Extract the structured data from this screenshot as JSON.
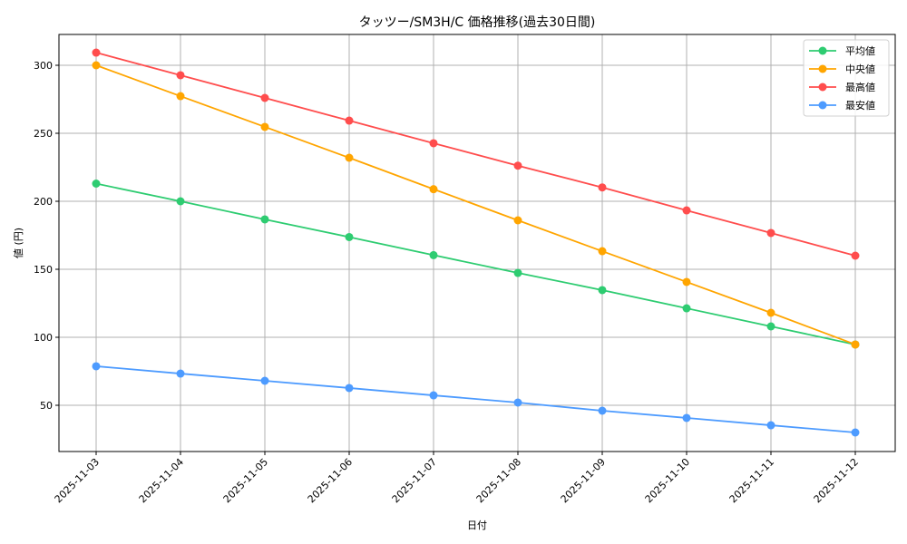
{
  "chart_data": {
    "type": "line",
    "title": "タッツー/SM3H/C 価格推移(過去30日間)",
    "xlabel": "日付",
    "ylabel": "値 (円)",
    "x": [
      "2025-11-03",
      "2025-11-04",
      "2025-11-05",
      "2025-11-06",
      "2025-11-07",
      "2025-11-08",
      "2025-11-09",
      "2025-11-10",
      "2025-11-11",
      "2025-11-12"
    ],
    "ylim": [
      16,
      323
    ],
    "yticks": [
      50,
      100,
      150,
      200,
      250,
      300
    ],
    "grid": true,
    "legend_position": "upper right",
    "series": [
      {
        "name": "平均値",
        "color": "#2ecc71",
        "values": [
          213.0,
          200.0,
          186.7,
          173.7,
          160.4,
          147.3,
          134.7,
          121.3,
          108.0,
          94.7
        ]
      },
      {
        "name": "中央値",
        "color": "#ffa500",
        "values": [
          300.0,
          277.3,
          254.7,
          232.0,
          208.9,
          186.0,
          163.3,
          140.7,
          118.0,
          94.7
        ]
      },
      {
        "name": "最高値",
        "color": "#ff4d4d",
        "values": [
          309.3,
          292.7,
          276.0,
          259.3,
          242.7,
          226.2,
          210.2,
          193.3,
          176.7,
          160.0
        ]
      },
      {
        "name": "最安値",
        "color": "#4d9bff",
        "values": [
          78.7,
          73.3,
          68.0,
          62.7,
          57.3,
          52.0,
          46.0,
          40.7,
          35.3,
          30.0
        ]
      }
    ]
  }
}
